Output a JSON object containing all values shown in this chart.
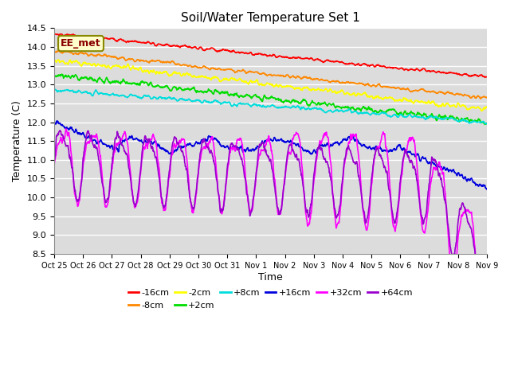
{
  "title": "Soil/Water Temperature Set 1",
  "xlabel": "Time",
  "ylabel": "Temperature (C)",
  "ylim": [
    8.5,
    14.5
  ],
  "xlim": [
    0,
    360
  ],
  "bg_color": "#dcdcdc",
  "plot_bg": "#dcdcdc",
  "annotation": "EE_met",
  "series": [
    {
      "label": "-16cm",
      "color": "#ff0000"
    },
    {
      "label": "-8cm",
      "color": "#ff8800"
    },
    {
      "label": "-2cm",
      "color": "#ffff00"
    },
    {
      "label": "+2cm",
      "color": "#00dd00"
    },
    {
      "label": "+8cm",
      "color": "#00dddd"
    },
    {
      "label": "+16cm",
      "color": "#0000dd"
    },
    {
      "label": "+32cm",
      "color": "#ff00ff"
    },
    {
      "label": "+64cm",
      "color": "#9900cc"
    }
  ],
  "xtick_labels": [
    "Oct 25",
    "Oct 26",
    "Oct 27",
    "Oct 28",
    "Oct 29",
    "Oct 30",
    "Oct 31",
    "Nov 1",
    "Nov 2",
    "Nov 3",
    "Nov 4",
    "Nov 5",
    "Nov 6",
    "Nov 7",
    "Nov 8",
    "Nov 9"
  ],
  "xtick_positions": [
    0,
    24,
    48,
    72,
    96,
    120,
    144,
    168,
    192,
    216,
    240,
    264,
    288,
    312,
    336,
    360
  ],
  "ytick_positions": [
    8.5,
    9.0,
    9.5,
    10.0,
    10.5,
    11.0,
    11.5,
    12.0,
    12.5,
    13.0,
    13.5,
    14.0,
    14.5
  ]
}
